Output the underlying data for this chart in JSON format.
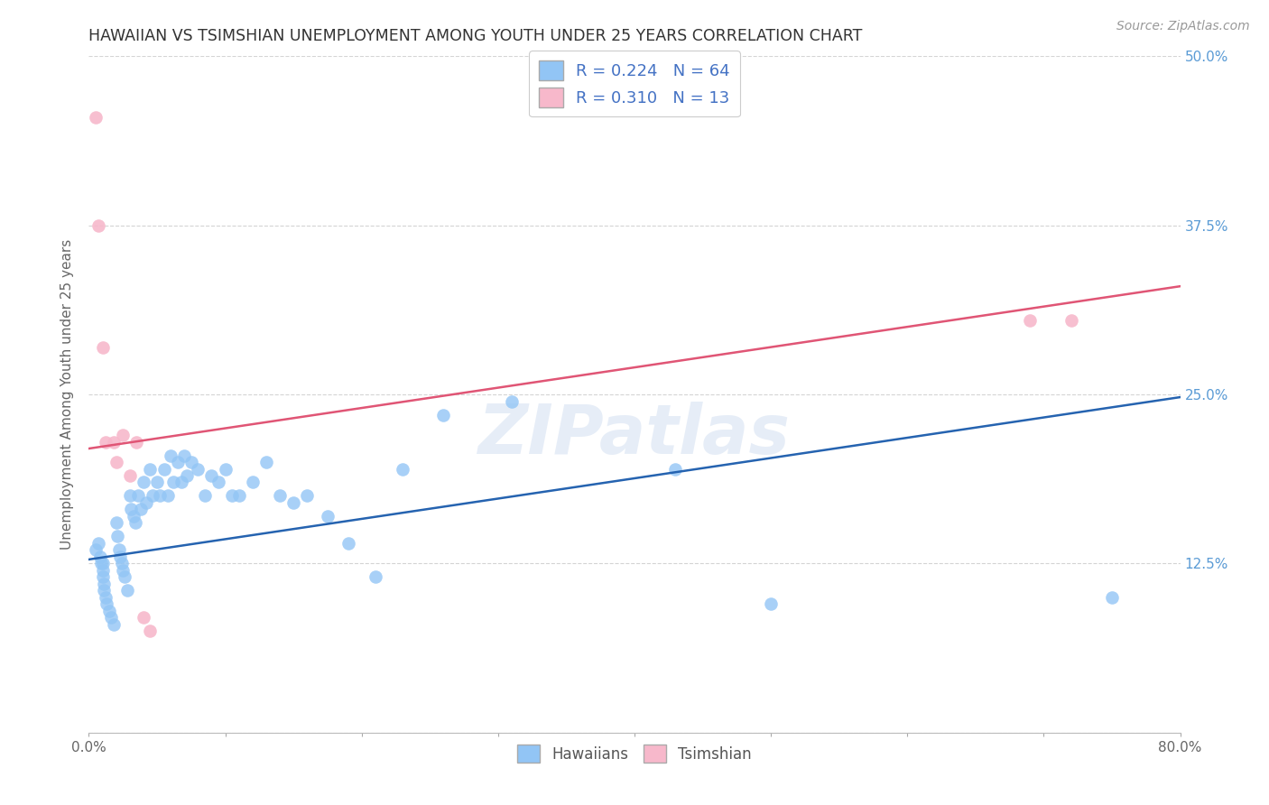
{
  "title": "HAWAIIAN VS TSIMSHIAN UNEMPLOYMENT AMONG YOUTH UNDER 25 YEARS CORRELATION CHART",
  "source": "Source: ZipAtlas.com",
  "ylabel": "Unemployment Among Youth under 25 years",
  "xlim": [
    0.0,
    0.8
  ],
  "ylim": [
    0.0,
    0.5
  ],
  "xticks": [
    0.0,
    0.1,
    0.2,
    0.3,
    0.4,
    0.5,
    0.6,
    0.7,
    0.8
  ],
  "yticks": [
    0.0,
    0.125,
    0.25,
    0.375,
    0.5
  ],
  "watermark": "ZIPatlas",
  "hawaiians_color": "#92c5f5",
  "tsimshian_color": "#f7b8cb",
  "hawaiians_line_color": "#2563b0",
  "tsimshian_line_color": "#e05575",
  "legend_R_hawaiians": "0.224",
  "legend_N_hawaiians": "64",
  "legend_R_tsimshian": "0.310",
  "legend_N_tsimshian": "13",
  "legend_text_color": "#4472c4",
  "background_color": "#ffffff",
  "grid_color": "#d0d0d0",
  "axis_label_color": "#5a9bd5",
  "hawaiians_x": [
    0.005,
    0.007,
    0.008,
    0.009,
    0.01,
    0.01,
    0.01,
    0.011,
    0.011,
    0.012,
    0.013,
    0.015,
    0.016,
    0.018,
    0.02,
    0.021,
    0.022,
    0.023,
    0.024,
    0.025,
    0.026,
    0.028,
    0.03,
    0.031,
    0.033,
    0.034,
    0.036,
    0.038,
    0.04,
    0.042,
    0.045,
    0.047,
    0.05,
    0.052,
    0.055,
    0.058,
    0.06,
    0.062,
    0.065,
    0.068,
    0.07,
    0.072,
    0.075,
    0.08,
    0.085,
    0.09,
    0.095,
    0.1,
    0.105,
    0.11,
    0.12,
    0.13,
    0.14,
    0.15,
    0.16,
    0.175,
    0.19,
    0.21,
    0.23,
    0.26,
    0.31,
    0.43,
    0.5,
    0.75
  ],
  "hawaiians_y": [
    0.135,
    0.14,
    0.13,
    0.125,
    0.125,
    0.12,
    0.115,
    0.11,
    0.105,
    0.1,
    0.095,
    0.09,
    0.085,
    0.08,
    0.155,
    0.145,
    0.135,
    0.13,
    0.125,
    0.12,
    0.115,
    0.105,
    0.175,
    0.165,
    0.16,
    0.155,
    0.175,
    0.165,
    0.185,
    0.17,
    0.195,
    0.175,
    0.185,
    0.175,
    0.195,
    0.175,
    0.205,
    0.185,
    0.2,
    0.185,
    0.205,
    0.19,
    0.2,
    0.195,
    0.175,
    0.19,
    0.185,
    0.195,
    0.175,
    0.175,
    0.185,
    0.2,
    0.175,
    0.17,
    0.175,
    0.16,
    0.14,
    0.115,
    0.195,
    0.235,
    0.245,
    0.195,
    0.095,
    0.1
  ],
  "tsimshian_x": [
    0.005,
    0.007,
    0.01,
    0.012,
    0.018,
    0.02,
    0.025,
    0.03,
    0.035,
    0.04,
    0.045,
    0.69,
    0.72
  ],
  "tsimshian_y": [
    0.455,
    0.375,
    0.285,
    0.215,
    0.215,
    0.2,
    0.22,
    0.19,
    0.215,
    0.085,
    0.075,
    0.305,
    0.305
  ],
  "blue_line_x0": 0.0,
  "blue_line_y0": 0.128,
  "blue_line_x1": 0.8,
  "blue_line_y1": 0.248,
  "pink_line_x0": 0.0,
  "pink_line_y0": 0.21,
  "pink_line_x1": 0.8,
  "pink_line_y1": 0.33
}
